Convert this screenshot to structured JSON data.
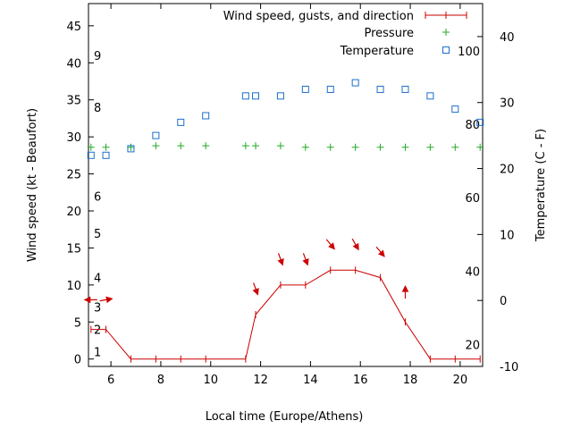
{
  "chart_data": {
    "type": "line",
    "xlabel": "Local time (Europe/Athens)",
    "ylabel": "Wind speed (kt - Beaufort)",
    "y2label": "Temperature (C - F)",
    "xlim": [
      5.1,
      20.9
    ],
    "ylim": [
      -1,
      48
    ],
    "y2lim": [
      -10,
      45
    ],
    "x_ticks": [
      6,
      8,
      10,
      12,
      14,
      16,
      18,
      20
    ],
    "y_ticks": [
      0,
      5,
      10,
      15,
      20,
      25,
      30,
      35,
      40,
      45
    ],
    "y2_ticks": [
      -10,
      0,
      10,
      20,
      30,
      40
    ],
    "beaufort_labels": [
      {
        "text": "1",
        "kt": 1
      },
      {
        "text": "2",
        "kt": 4
      },
      {
        "text": "3",
        "kt": 7
      },
      {
        "text": "4",
        "kt": 11
      },
      {
        "text": "5",
        "kt": 17
      },
      {
        "text": "6",
        "kt": 22
      },
      {
        "text": "8",
        "kt": 34
      },
      {
        "text": "9",
        "kt": 41
      }
    ],
    "fahrenheit_labels": [
      {
        "text": "20",
        "celsius": -6.7
      },
      {
        "text": "40",
        "celsius": 4.4
      },
      {
        "text": "60",
        "celsius": 15.6
      },
      {
        "text": "80",
        "celsius": 26.7
      },
      {
        "text": "100",
        "celsius": 37.8
      }
    ],
    "legend": {
      "position": "top-right",
      "wind": "Wind speed, gusts, and direction",
      "pressure": "Pressure",
      "temperature": "Temperature"
    },
    "colors": {
      "wind": "#cc0000",
      "pressure": "#22aa22",
      "temperature": "#1a6fcc",
      "axis": "#000000"
    },
    "series": [
      {
        "name": "Wind speed, gusts, and direction",
        "axis": "left",
        "x": [
          5.2,
          5.8,
          6.8,
          7.8,
          8.8,
          9.8,
          11.4,
          11.8,
          12.8,
          13.8,
          14.8,
          15.8,
          16.8,
          17.8,
          18.8,
          19.8,
          20.8
        ],
        "values": [
          4,
          4,
          0,
          0,
          0,
          0,
          0,
          6,
          10,
          10,
          12,
          12,
          11,
          5,
          0,
          0,
          0
        ]
      },
      {
        "name": "Pressure",
        "axis": "left",
        "x": [
          5.2,
          5.8,
          6.8,
          7.8,
          8.8,
          9.8,
          11.4,
          11.8,
          12.8,
          13.8,
          14.8,
          15.8,
          16.8,
          17.8,
          18.8,
          19.8,
          20.8
        ],
        "values": [
          28.6,
          28.6,
          28.6,
          28.8,
          28.8,
          28.8,
          28.8,
          28.8,
          28.8,
          28.6,
          28.6,
          28.6,
          28.6,
          28.6,
          28.6,
          28.6,
          28.6
        ]
      },
      {
        "name": "Temperature",
        "axis": "right",
        "x": [
          5.2,
          5.8,
          6.8,
          7.8,
          8.8,
          9.8,
          11.4,
          11.8,
          12.8,
          13.8,
          14.8,
          15.8,
          16.8,
          17.8,
          18.8,
          19.8,
          20.8
        ],
        "values": [
          22,
          22,
          23,
          25,
          27,
          28,
          31,
          31,
          31,
          32,
          32,
          33,
          32,
          32,
          31,
          29,
          27
        ]
      }
    ],
    "wind_arrows": [
      {
        "x": 5.2,
        "kt": 8,
        "dir_deg": 90
      },
      {
        "x": 5.8,
        "kt": 8,
        "dir_deg": 260
      },
      {
        "x": 11.8,
        "kt": 9.5,
        "dir_deg": 340
      },
      {
        "x": 12.8,
        "kt": 13.5,
        "dir_deg": 340
      },
      {
        "x": 13.8,
        "kt": 13.5,
        "dir_deg": 340
      },
      {
        "x": 14.8,
        "kt": 15.5,
        "dir_deg": 320
      },
      {
        "x": 15.8,
        "kt": 15.5,
        "dir_deg": 330
      },
      {
        "x": 16.8,
        "kt": 14.5,
        "dir_deg": 320
      },
      {
        "x": 17.8,
        "kt": 9,
        "dir_deg": 180
      }
    ]
  }
}
